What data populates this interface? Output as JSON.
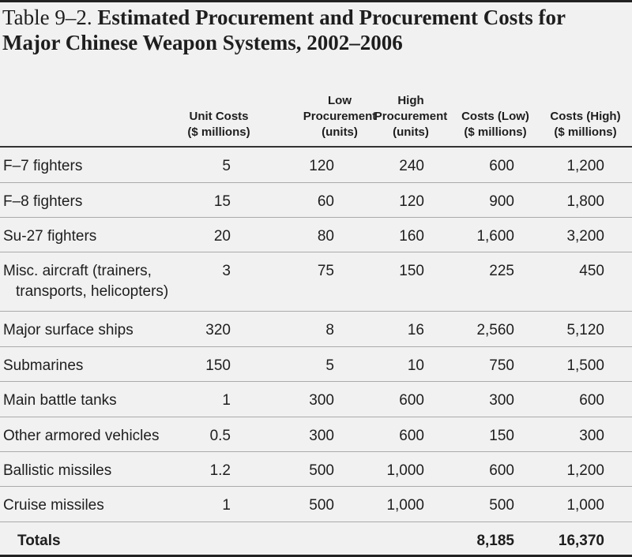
{
  "title": {
    "prefix": "Table 9–2.",
    "main": "Estimated Procurement and Procurement Costs for Major Chinese Weapon Systems, 2002–2006"
  },
  "headers": {
    "unit_costs": [
      "Unit Costs",
      "($ millions)"
    ],
    "low_procurement": [
      "Low",
      "Procurement",
      "(units)"
    ],
    "high_procurement": [
      "High",
      "Procurement",
      "(units)"
    ],
    "costs_low": [
      "Costs (Low)",
      "($ millions)"
    ],
    "costs_high": [
      "Costs (High)",
      "($ millions)"
    ]
  },
  "rows": [
    {
      "label": [
        "F–7 fighters"
      ],
      "unit": "5",
      "low": "120",
      "high": "240",
      "cost_low": "600",
      "cost_high": "1,200"
    },
    {
      "label": [
        "F–8 fighters"
      ],
      "unit": "15",
      "low": "60",
      "high": "120",
      "cost_low": "900",
      "cost_high": "1,800"
    },
    {
      "label": [
        "Su-27 fighters"
      ],
      "unit": "20",
      "low": "80",
      "high": "160",
      "cost_low": "1,600",
      "cost_high": "3,200"
    },
    {
      "label": [
        "Misc. aircraft (trainers,",
        "transports, helicopters)"
      ],
      "unit": "3",
      "low": "75",
      "high": "150",
      "cost_low": "225",
      "cost_high": "450"
    },
    {
      "label": [
        "Major surface ships"
      ],
      "unit": "320",
      "low": "8",
      "high": "16",
      "cost_low": "2,560",
      "cost_high": "5,120"
    },
    {
      "label": [
        "Submarines"
      ],
      "unit": "150",
      "low": "5",
      "high": "10",
      "cost_low": "750",
      "cost_high": "1,500"
    },
    {
      "label": [
        "Main battle tanks"
      ],
      "unit": "1",
      "low": "300",
      "high": "600",
      "cost_low": "300",
      "cost_high": "600"
    },
    {
      "label": [
        "Other armored vehicles"
      ],
      "unit": "0.5",
      "low": "300",
      "high": "600",
      "cost_low": "150",
      "cost_high": "300"
    },
    {
      "label": [
        "Ballistic missiles"
      ],
      "unit": "1.2",
      "low": "500",
      "high": "1,000",
      "cost_low": "600",
      "cost_high": "1,200"
    },
    {
      "label": [
        "Cruise missiles"
      ],
      "unit": "1",
      "low": "500",
      "high": "1,000",
      "cost_low": "500",
      "cost_high": "1,000"
    }
  ],
  "totals": {
    "label": "Totals",
    "cost_low": "8,185",
    "cost_high": "16,370"
  }
}
